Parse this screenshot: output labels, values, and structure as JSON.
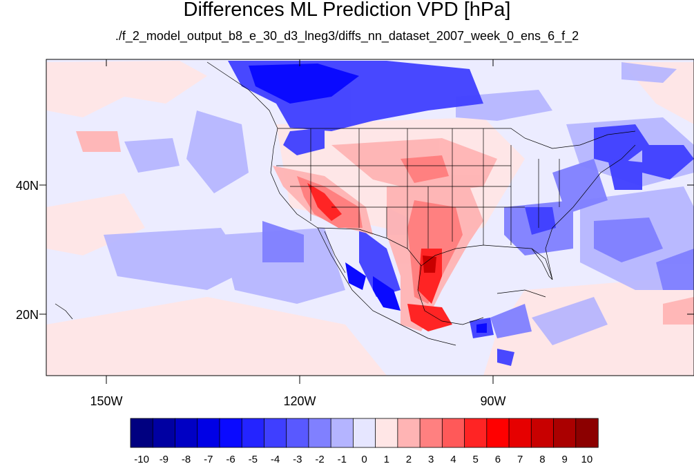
{
  "title": "Differences ML Prediction VPD [hPa]",
  "subtitle": "./f_2_model_output_b8_e_30_d3_lneg3/diffs_nn_dataset_2007_week_0_ens_6_f_2",
  "map": {
    "lon_ticks": [
      "150W",
      "120W",
      "90W"
    ],
    "lat_ticks": [
      "40N",
      "20N"
    ]
  },
  "colorbar": {
    "labels": [
      "-10",
      "-9",
      "-8",
      "-7",
      "-6",
      "-5",
      "-4",
      "-3",
      "-2",
      "-1",
      "0",
      "1",
      "2",
      "3",
      "4",
      "5",
      "6",
      "7",
      "8",
      "9",
      "10"
    ],
    "colors": [
      "#000080",
      "#0000a2",
      "#0000c4",
      "#0000e6",
      "#0a0aff",
      "#2424ff",
      "#3f3fff",
      "#5959ff",
      "#8080ff",
      "#b4b4ff",
      "#e6e6ff",
      "#ffe6e6",
      "#ffb4b4",
      "#ff8080",
      "#ff5959",
      "#ff2424",
      "#ff0000",
      "#e60000",
      "#c80000",
      "#aa0000",
      "#8c0000"
    ]
  },
  "legend_colors": {
    "negative": "#0000ff",
    "positive": "#ff0000",
    "background": "#e6e6ff"
  }
}
